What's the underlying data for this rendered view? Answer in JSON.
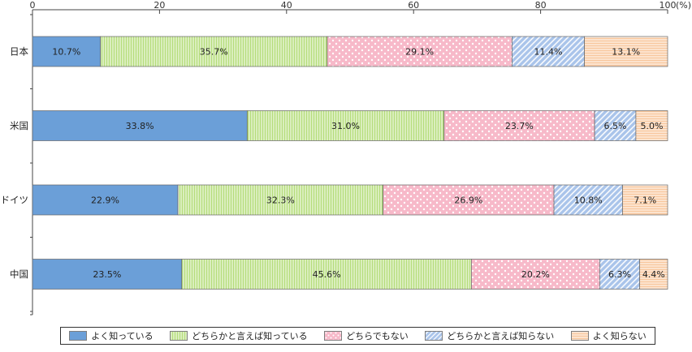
{
  "chart_data": {
    "type": "bar",
    "orientation": "horizontal",
    "stacked": true,
    "unit_label": "(%)",
    "xlim": [
      0,
      100
    ],
    "x_ticks": [
      "0",
      "20",
      "40",
      "60",
      "80",
      "100"
    ],
    "categories": [
      "日本",
      "米国",
      "ドイツ",
      "中国"
    ],
    "series": [
      {
        "name": "よく知っている",
        "values": [
          10.7,
          33.8,
          22.9,
          23.5
        ],
        "labels": [
          "10.7%",
          "33.8%",
          "22.9%",
          "23.5%"
        ],
        "color": "#6b9fd8",
        "pattern": "solid"
      },
      {
        "name": "どちらかと言えば知っている",
        "values": [
          35.7,
          31.0,
          32.3,
          45.6
        ],
        "labels": [
          "35.7%",
          "31.0%",
          "32.3%",
          "45.6%"
        ],
        "color": "#b5dd7b",
        "pattern": "vertical-lines"
      },
      {
        "name": "どちらでもない",
        "values": [
          29.1,
          23.7,
          26.9,
          20.2
        ],
        "labels": [
          "29.1%",
          "23.7%",
          "26.9%",
          "20.2%"
        ],
        "color": "#f7b9c9",
        "pattern": "dots"
      },
      {
        "name": "どちらかと言えば知らない",
        "values": [
          11.4,
          6.5,
          10.8,
          6.3
        ],
        "labels": [
          "11.4%",
          "6.5%",
          "10.8%",
          "6.3%"
        ],
        "color": "#a9c4ea",
        "pattern": "diagonal-lines"
      },
      {
        "name": "よく知らない",
        "values": [
          13.1,
          5.0,
          7.1,
          4.4
        ],
        "labels": [
          "13.1%",
          "5.0%",
          "7.1%",
          "4.4%"
        ],
        "color": "#f8c79d",
        "pattern": "horizontal-lines"
      }
    ],
    "grid": false,
    "legend_position": "bottom"
  }
}
